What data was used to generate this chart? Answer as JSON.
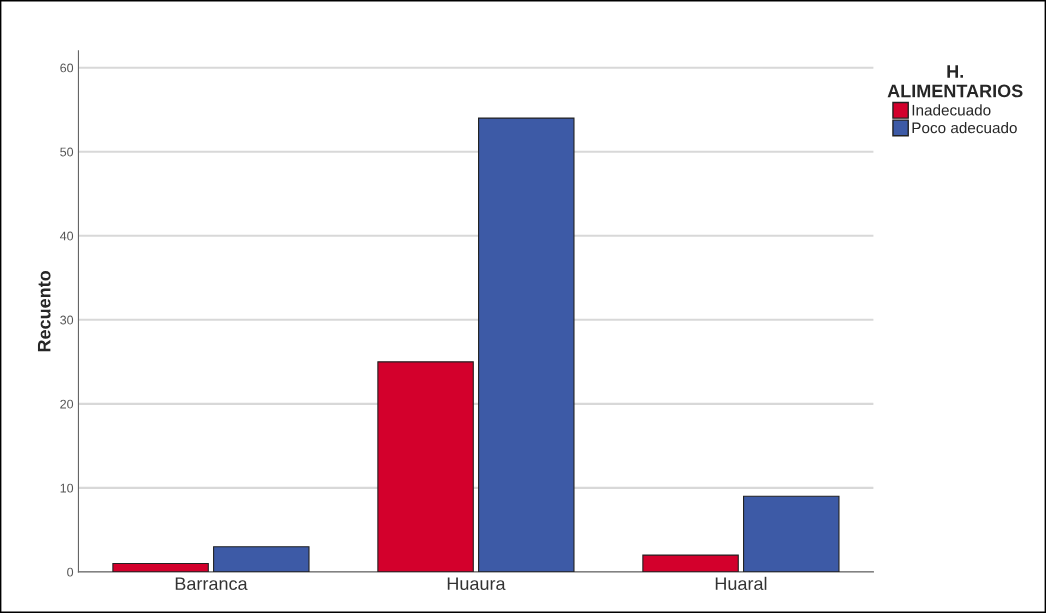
{
  "chart_data": {
    "type": "bar",
    "ylabel": "Recuento",
    "legend_title": "H.\nALIMENTARIOS",
    "categories": [
      "Barranca",
      "Huaura",
      "Huaral"
    ],
    "series": [
      {
        "name": "Inadecuado",
        "color": "#d3002c",
        "values": [
          1,
          25,
          2
        ]
      },
      {
        "name": "Poco adecuado",
        "color": "#3d5aa6",
        "values": [
          3,
          54,
          9
        ]
      }
    ],
    "ylim": [
      0,
      62
    ],
    "yticks": [
      0,
      10,
      20,
      30,
      40,
      50,
      60
    ],
    "grid": "y",
    "legend": "top right"
  }
}
